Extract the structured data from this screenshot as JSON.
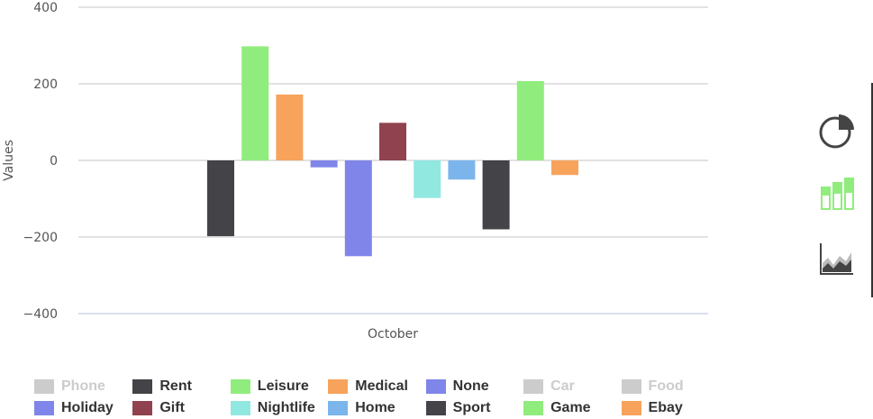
{
  "chart_data": {
    "type": "bar",
    "categories": [
      "October"
    ],
    "ylabel": "Values",
    "xlabel": "",
    "ylim": [
      -400,
      400
    ],
    "yticks": [
      400,
      200,
      0,
      -200,
      -400
    ],
    "ytick_labels": [
      "400",
      "200",
      "0",
      "−200",
      "−400"
    ],
    "grid": true,
    "legend_position": "bottom",
    "series": [
      {
        "name": "Phone",
        "values": [
          null
        ],
        "color": "#cccccc",
        "visible": false
      },
      {
        "name": "Rent",
        "values": [
          -198
        ],
        "color": "#434348",
        "visible": true
      },
      {
        "name": "Leisure",
        "values": [
          298
        ],
        "color": "#90ed7d",
        "visible": true
      },
      {
        "name": "Medical",
        "values": [
          172
        ],
        "color": "#f7a35c",
        "visible": true
      },
      {
        "name": "None",
        "values": [
          -18
        ],
        "color": "#8085e9",
        "visible": true
      },
      {
        "name": "Car",
        "values": [
          null
        ],
        "color": "#cccccc",
        "visible": false
      },
      {
        "name": "Food",
        "values": [
          null
        ],
        "color": "#cccccc",
        "visible": false
      },
      {
        "name": "Holiday",
        "values": [
          -250
        ],
        "color": "#8085e9",
        "visible": true
      },
      {
        "name": "Gift",
        "values": [
          98
        ],
        "color": "#91424f",
        "visible": true
      },
      {
        "name": "Nightlife",
        "values": [
          -98
        ],
        "color": "#91e8e1",
        "visible": true
      },
      {
        "name": "Home",
        "values": [
          -50
        ],
        "color": "#7cb5ec",
        "visible": true
      },
      {
        "name": "Sport",
        "values": [
          -180
        ],
        "color": "#434348",
        "visible": true
      },
      {
        "name": "Game",
        "values": [
          207
        ],
        "color": "#90ed7d",
        "visible": true
      },
      {
        "name": "Ebay",
        "values": [
          -38
        ],
        "color": "#f7a35c",
        "visible": true
      }
    ]
  },
  "legend_rows": [
    [
      "Phone",
      "Rent",
      "Leisure",
      "Medical",
      "None",
      "Car",
      "Food"
    ],
    [
      "Holiday",
      "Gift",
      "Nightlife",
      "Home",
      "Sport",
      "Game",
      "Ebay"
    ]
  ],
  "toolbar": {
    "icons": [
      "pie-chart-icon",
      "bar-chart-icon",
      "area-chart-icon"
    ],
    "bar_icon_color": "#90ed7d",
    "icon_color": "#444444"
  }
}
